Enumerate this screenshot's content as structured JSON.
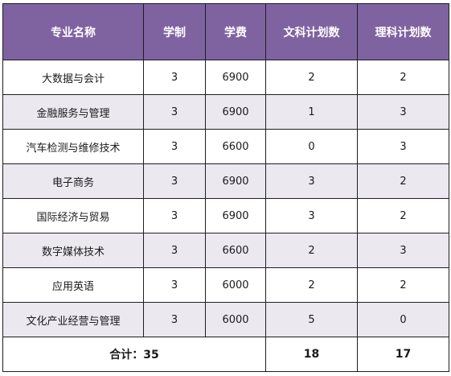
{
  "table": {
    "headers": [
      "专业名称",
      "学制",
      "学费",
      "文科计划数",
      "理科计划数"
    ],
    "rows": [
      [
        "大数据与会计",
        "3",
        "6900",
        "2",
        "2"
      ],
      [
        "金融服务与管理",
        "3",
        "6900",
        "1",
        "3"
      ],
      [
        "汽车检测与维修技术",
        "3",
        "6600",
        "0",
        "3"
      ],
      [
        "电子商务",
        "3",
        "6900",
        "3",
        "2"
      ],
      [
        "国际经济与贸易",
        "3",
        "6900",
        "3",
        "2"
      ],
      [
        "数字媒体技术",
        "3",
        "6600",
        "2",
        "3"
      ],
      [
        "应用英语",
        "3",
        "6000",
        "2",
        "2"
      ],
      [
        "文化产业经营与管理",
        "3",
        "6000",
        "5",
        "0"
      ]
    ],
    "footer": {
      "total_label": "合计：35",
      "liberal_total": "18",
      "science_total": "17"
    }
  },
  "colors": {
    "header_bg": "#7f63a1",
    "header_text": "#ffffff",
    "stripe_bg": "#ebe8f0",
    "border": "#1e1e1e"
  }
}
